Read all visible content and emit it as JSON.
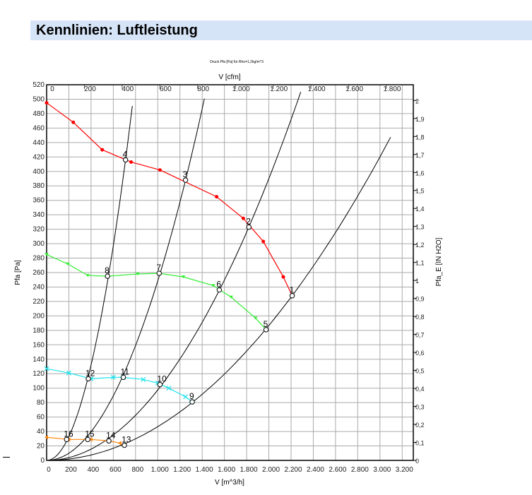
{
  "header": {
    "title": "Kennlinien: Luftleistung"
  },
  "chart_data": {
    "type": "line",
    "title": "Druck Pfa [Pa] für Rho=1,2kg/m^3",
    "xlabel": "V [m^3/h]",
    "x2label": "V [cfm]",
    "ylabel": "Pfa [Pa]",
    "y2label": "Pfa_E [IN H2O]",
    "xlim": [
      0,
      3300
    ],
    "ylim": [
      0,
      520
    ],
    "xticks": [
      0,
      200,
      400,
      600,
      800,
      1000,
      1200,
      1400,
      1600,
      1800,
      2000,
      2200,
      2400,
      2600,
      2800,
      3000,
      3200
    ],
    "xtick_labels": [
      "0",
      "200",
      "400",
      "600",
      "800",
      "1.000",
      "1.200",
      "1.400",
      "1.600",
      "1.800",
      "2.000",
      "2.200",
      "2.400",
      "2.600",
      "2.800",
      "3.000",
      "3.200"
    ],
    "x2ticks": [
      0,
      200,
      400,
      600,
      800,
      1000,
      1200,
      1400,
      1600,
      1800
    ],
    "x2tick_labels": [
      "0",
      "200",
      "400",
      "600",
      "800",
      "1.000",
      "1.200",
      "1.400",
      "1.600",
      "1.800"
    ],
    "yticks": [
      0,
      20,
      40,
      60,
      80,
      100,
      120,
      140,
      160,
      180,
      200,
      220,
      240,
      260,
      280,
      300,
      320,
      340,
      360,
      380,
      400,
      420,
      440,
      460,
      480,
      500,
      520
    ],
    "y2ticks": [
      0,
      0.1,
      0.2,
      0.3,
      0.4,
      0.5,
      0.6,
      0.7,
      0.8,
      0.9,
      1,
      1.1,
      1.2,
      1.3,
      1.4,
      1.5,
      1.6,
      1.7,
      1.8,
      1.9,
      2
    ],
    "y2tick_labels": [
      "0",
      "0,1",
      "0,2",
      "0,3",
      "0,4",
      "0,5",
      "0,6",
      "0,7",
      "0,8",
      "0,9",
      "1",
      "1,1",
      "1,2",
      "1,3",
      "1,4",
      "1,5",
      "1,6",
      "1,7",
      "1,8",
      "1,9",
      "2"
    ],
    "grid": true,
    "series": [
      {
        "color": "#ff0000",
        "marker": "circle",
        "x": [
          0,
          240,
          500,
          760,
          1020,
          1530,
          1770,
          1950,
          2130,
          2210
        ],
        "y": [
          495,
          468,
          430,
          413,
          402,
          365,
          335,
          303,
          254,
          228
        ]
      },
      {
        "color": "#33ee33",
        "marker": "triangle",
        "x": [
          0,
          190,
          370,
          548,
          820,
          1013,
          1230,
          1500,
          1660,
          1880,
          1975
        ],
        "y": [
          285,
          272,
          256,
          255,
          258,
          259,
          254,
          242,
          226,
          197,
          181
        ]
      },
      {
        "color": "#22e5ee",
        "marker": "x",
        "x": [
          0,
          200,
          400,
          600,
          690,
          870,
          1000,
          1100,
          1250,
          1310
        ],
        "y": [
          127,
          121,
          113,
          115,
          115,
          112,
          107,
          100,
          88,
          81
        ]
      },
      {
        "color": "#ff8811",
        "marker": "triangle-left",
        "x": [
          0,
          200,
          400,
          560,
          660,
          700
        ],
        "y": [
          32,
          29,
          29,
          27,
          24,
          21
        ]
      }
    ],
    "system_curves": [
      {
        "through": [
          710,
          416
        ],
        "x_end": 771
      },
      {
        "through": [
          1250,
          388
        ],
        "x_end": 1420
      },
      {
        "through": [
          1820,
          323
        ],
        "x_end": 2287
      },
      {
        "through": [
          2210,
          228
        ],
        "x_end": 3096
      }
    ],
    "operating_points": [
      {
        "label": "1",
        "x": 2210,
        "y": 228
      },
      {
        "label": "2",
        "x": 1820,
        "y": 323
      },
      {
        "label": "3",
        "x": 1250,
        "y": 388
      },
      {
        "label": "4",
        "x": 710,
        "y": 416
      },
      {
        "label": "5",
        "x": 1975,
        "y": 181
      },
      {
        "label": "6",
        "x": 1554,
        "y": 236
      },
      {
        "label": "7",
        "x": 1013,
        "y": 259
      },
      {
        "label": "8",
        "x": 548,
        "y": 255
      },
      {
        "label": "9",
        "x": 1310,
        "y": 81
      },
      {
        "label": "10",
        "x": 1020,
        "y": 105
      },
      {
        "label": "11",
        "x": 690,
        "y": 115
      },
      {
        "label": "12",
        "x": 375,
        "y": 113
      },
      {
        "label": "13",
        "x": 700,
        "y": 21
      },
      {
        "label": "14",
        "x": 560,
        "y": 27
      },
      {
        "label": "15",
        "x": 370,
        "y": 29
      },
      {
        "label": "16",
        "x": 180,
        "y": 29
      }
    ]
  }
}
